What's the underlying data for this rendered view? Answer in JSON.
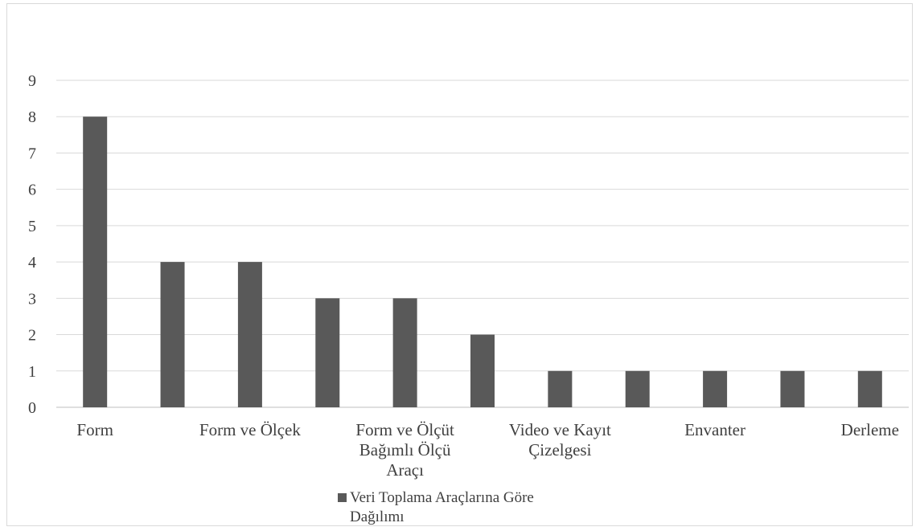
{
  "chart_data": {
    "type": "bar",
    "categories": [
      "Form",
      "",
      "Form ve Ölçek",
      "",
      "Form ve Ölçüt Bağımlı Ölçü Araçı",
      "",
      "Video ve Kayıt Çizelgesi",
      "",
      "Envanter",
      "",
      "Derleme"
    ],
    "category_label_lines": [
      [
        "Form"
      ],
      [],
      [
        "Form ve Ölçek"
      ],
      [],
      [
        "Form ve Ölçüt",
        "Bağımlı Ölçü",
        "Araçı"
      ],
      [],
      [
        "Video ve Kayıt",
        "Çizelgesi"
      ],
      [],
      [
        "Envanter"
      ],
      [],
      [
        "Derleme"
      ]
    ],
    "series": [
      {
        "name": "Veri Toplama Araçlarına Göre Dağılımı",
        "name_lines": [
          "Veri Toplama Araçlarına Göre",
          "Dağılımı"
        ],
        "values": [
          8,
          4,
          4,
          3,
          3,
          2,
          1,
          1,
          1,
          1,
          1
        ],
        "color": "#595959"
      }
    ],
    "yticks": [
      "0",
      "1",
      "2",
      "3",
      "4",
      "5",
      "6",
      "7",
      "8",
      "9"
    ],
    "ylim": [
      0,
      9
    ],
    "title": "",
    "xlabel": "",
    "ylabel": "",
    "grid": true,
    "legend_position": "bottom"
  }
}
